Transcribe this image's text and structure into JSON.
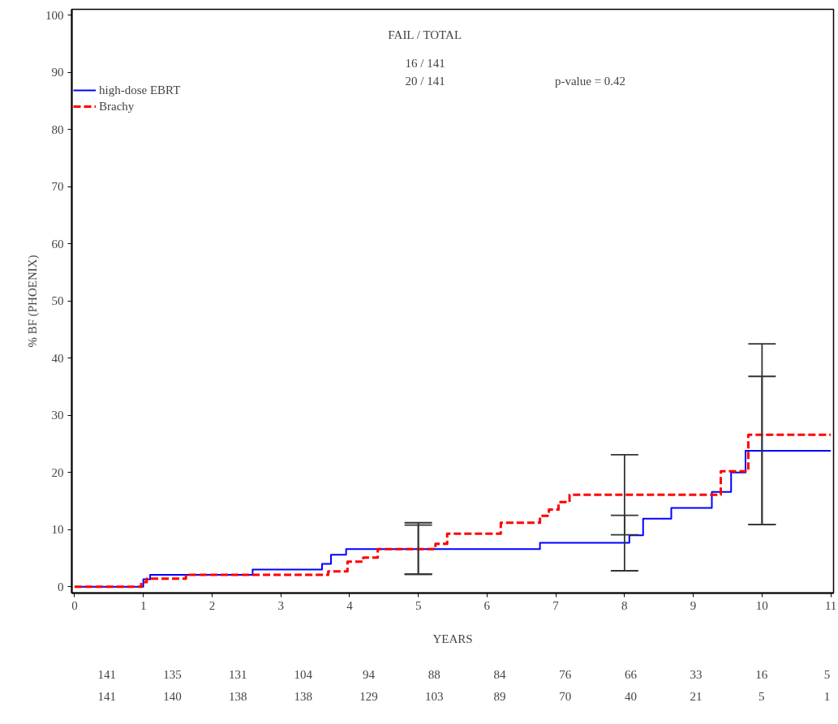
{
  "chart_data": {
    "type": "step",
    "xlabel": "YEARS",
    "ylabel": "% BF (PHOENIX)",
    "xlim": [
      -0.04,
      11.04
    ],
    "xticks": [
      0,
      1,
      2,
      3,
      4,
      5,
      6,
      7,
      8,
      9,
      10,
      11
    ],
    "ylim": [
      -1.1,
      101
    ],
    "yticks": [
      0,
      10,
      20,
      30,
      40,
      50,
      60,
      70,
      80,
      90,
      100
    ],
    "grid": false,
    "legend": "top left",
    "marker": "none",
    "series": [
      {
        "name": "high-dose EBRT",
        "color": "#0000ff",
        "line_style": "solid",
        "x": [
          0,
          1.0,
          1.1,
          2.59,
          3.6,
          3.73,
          3.95,
          5,
          6.77,
          8,
          8.07,
          8.27,
          8.68,
          9.27,
          9.55,
          9.76,
          10,
          11
        ],
        "values": [
          0,
          1.3,
          2.1,
          3.0,
          4.0,
          5.6,
          6.6,
          6.6,
          7.7,
          7.7,
          9.0,
          11.9,
          13.8,
          16.6,
          20.0,
          23.8,
          23.8,
          23.8
        ],
        "errors": [
          null,
          null,
          null,
          null,
          null,
          null,
          null,
          [
            2.2,
            10.8
          ],
          null,
          [
            2.8,
            12.5
          ],
          null,
          null,
          null,
          null,
          null,
          null,
          [
            10.9,
            36.8
          ],
          null
        ]
      },
      {
        "name": "Brachy",
        "color": "#ff0000",
        "line_style": "dashed",
        "x": [
          0,
          0.97,
          1.05,
          1.62,
          3.69,
          3.97,
          4.2,
          4.41,
          5,
          5.25,
          5.42,
          6.2,
          6.77,
          6.9,
          7.04,
          7.2,
          8,
          9.4,
          9.8,
          10,
          11
        ],
        "values": [
          0,
          0.8,
          1.4,
          2.1,
          2.7,
          4.4,
          5.1,
          6.6,
          6.6,
          7.5,
          9.3,
          11.2,
          12.4,
          13.5,
          14.8,
          16.1,
          16.1,
          20.2,
          26.6,
          26.6,
          26.6
        ],
        "errors": [
          null,
          null,
          null,
          null,
          null,
          null,
          null,
          null,
          [
            2.2,
            11.2
          ],
          null,
          null,
          null,
          null,
          null,
          null,
          null,
          [
            9.1,
            23.1
          ],
          null,
          null,
          [
            10.9,
            42.5
          ],
          null
        ]
      }
    ],
    "annotations": [
      "FAIL / TOTAL",
      "16 / 141",
      "20 / 141",
      "p-value = 0.42",
      "141 135 131 104 94 88 84 76 66 33 16 5",
      "141 140 138 138 129 103 89 70 40 21 5 1"
    ]
  }
}
